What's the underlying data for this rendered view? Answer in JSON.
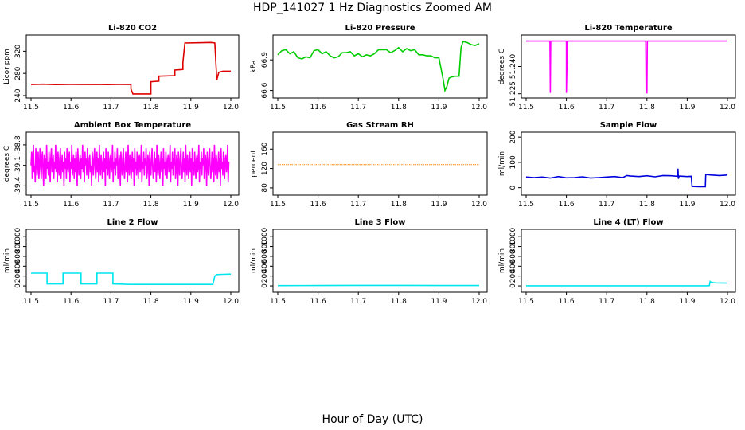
{
  "page_title": "HDP_141027  1 Hz Diagnostics Zoomed AM",
  "x_axis_label": "Hour of Day (UTC)",
  "chart_data": [
    {
      "type": "line",
      "title": "Li-820 CO2",
      "ylabel": "Licor ppm",
      "color": "#dd0000",
      "xlim": [
        11.5,
        12.0
      ],
      "ylim": [
        240,
        345
      ],
      "xticks": [
        "11.5",
        "11.6",
        "11.7",
        "11.8",
        "11.9",
        "12.0"
      ],
      "yticks": [
        "240",
        "280",
        "320"
      ],
      "yticks_values": [
        240,
        280,
        320
      ],
      "series": [
        {
          "name": "CO2",
          "x": [
            11.5,
            11.53,
            11.56,
            11.6,
            11.63,
            11.66,
            11.69,
            11.72,
            11.75,
            11.75,
            11.755,
            11.8,
            11.8,
            11.82,
            11.82,
            11.86,
            11.86,
            11.88,
            11.88,
            11.885,
            11.95,
            11.96,
            11.965,
            11.97,
            11.98,
            12.0
          ],
          "values": [
            260,
            260.5,
            259.8,
            260.2,
            260,
            260.3,
            259.9,
            260.1,
            260,
            252,
            243,
            243,
            265,
            266,
            275,
            276,
            286,
            287,
            300,
            335,
            336,
            335,
            268,
            282,
            284,
            284
          ]
        }
      ]
    },
    {
      "type": "line",
      "title": "Li-820 Pressure",
      "ylabel": "kPa",
      "color": "#00cc00",
      "xlim": [
        11.5,
        12.0
      ],
      "ylim": [
        66.55,
        67.12
      ],
      "xticks": [
        "11.5",
        "11.6",
        "11.7",
        "11.8",
        "11.9",
        "12.0"
      ],
      "yticks": [
        "66.6",
        "66.9"
      ],
      "yticks_values": [
        66.6,
        66.9
      ],
      "series": [
        {
          "name": "Pressure",
          "x": [
            11.5,
            11.51,
            11.52,
            11.53,
            11.54,
            11.55,
            11.56,
            11.57,
            11.58,
            11.59,
            11.6,
            11.61,
            11.62,
            11.63,
            11.64,
            11.65,
            11.66,
            11.67,
            11.68,
            11.69,
            11.7,
            11.71,
            11.72,
            11.73,
            11.74,
            11.75,
            11.76,
            11.77,
            11.78,
            11.79,
            11.8,
            11.81,
            11.82,
            11.83,
            11.84,
            11.85,
            11.86,
            11.87,
            11.88,
            11.89,
            11.9,
            11.91,
            11.915,
            11.92,
            11.925,
            11.93,
            11.94,
            11.95,
            11.955,
            11.96,
            11.97,
            11.98,
            11.99,
            12.0
          ],
          "values": [
            66.95,
            66.99,
            67.0,
            66.96,
            66.98,
            66.92,
            66.91,
            66.93,
            66.92,
            66.99,
            67.0,
            66.96,
            66.98,
            66.94,
            66.92,
            66.93,
            66.97,
            66.97,
            66.98,
            66.94,
            66.96,
            66.93,
            66.95,
            66.94,
            66.96,
            67.0,
            67.0,
            67.0,
            66.97,
            66.99,
            67.02,
            66.98,
            67.01,
            66.99,
            67.0,
            66.95,
            66.95,
            66.94,
            66.94,
            66.92,
            66.92,
            66.72,
            66.6,
            66.64,
            66.72,
            66.73,
            66.74,
            66.74,
            67.02,
            67.08,
            67.07,
            67.05,
            67.04,
            67.06
          ]
        }
      ]
    },
    {
      "type": "line",
      "title": "Li-820 Temperature",
      "ylabel": "degrees C",
      "color": "#ff00ff",
      "xlim": [
        11.5,
        12.0
      ],
      "ylim": [
        51.224,
        51.256
      ],
      "xticks": [
        "11.5",
        "11.6",
        "11.7",
        "11.8",
        "11.9",
        "12.0"
      ],
      "yticks": [
        "51.225",
        "51.240"
      ],
      "yticks_values": [
        51.225,
        51.24
      ],
      "series": [
        {
          "name": "Temperature",
          "x": [
            11.5,
            11.559,
            11.56,
            11.561,
            11.6,
            11.6,
            11.602,
            11.603,
            11.797,
            11.798,
            11.8,
            11.801,
            12.0
          ],
          "values": [
            51.254,
            51.254,
            51.2255,
            51.254,
            51.254,
            51.2255,
            51.246,
            51.254,
            51.254,
            51.2255,
            51.2255,
            51.254,
            51.254
          ]
        }
      ]
    },
    {
      "type": "line",
      "title": "Ambient Box Temperature",
      "ylabel": "degrees C",
      "color": "#ff00ff",
      "xlim": [
        11.5,
        12.0
      ],
      "ylim": [
        -39.5,
        -38.65
      ],
      "xticks": [
        "11.5",
        "11.6",
        "11.7",
        "11.8",
        "11.9",
        "12.0"
      ],
      "yticks": [
        "-39.4",
        "-39.1",
        "-38.8"
      ],
      "yticks_values": [
        -39.4,
        -39.1,
        -38.8
      ],
      "series": [
        {
          "name": "Ambient",
          "x_start": 11.5,
          "x_step": 0.0015,
          "values": [
            -39.1,
            -38.9,
            -39.3,
            -39.0,
            -38.8,
            -39.2,
            -39.1,
            -39.35,
            -38.85,
            -39.0,
            -39.25,
            -39.1,
            -38.9,
            -39.3,
            -39.15,
            -38.85,
            -39.05,
            -39.3,
            -39.0,
            -38.9,
            -39.2,
            -39.4,
            -38.95,
            -39.1,
            -39.0,
            -39.3,
            -38.8,
            -39.15,
            -39.05,
            -39.25,
            -38.9,
            -39.1,
            -39.35,
            -39.0,
            -38.85,
            -39.2,
            -39.1,
            -38.95,
            -39.3,
            -39.05,
            -39.15,
            -38.8,
            -39.2,
            -39.0,
            -39.35,
            -38.9,
            -39.1,
            -39.25,
            -39.0,
            -38.85,
            -39.3,
            -39.1,
            -38.95,
            -39.2,
            -39.05,
            -39.4,
            -38.9,
            -39.15,
            -39.0,
            -39.3,
            -38.85,
            -39.1,
            -39.2,
            -39.0,
            -38.9,
            -39.35,
            -39.05,
            -39.15,
            -38.8,
            -39.25,
            -39.1,
            -38.95,
            -39.3,
            -39.0,
            -39.2,
            -38.9,
            -39.1,
            -39.4,
            -38.85,
            -39.05,
            -39.25,
            -39.1,
            -38.95,
            -39.3,
            -39.0,
            -39.15,
            -38.8,
            -39.2,
            -39.05,
            -39.35,
            -38.9,
            -39.1,
            -39.0,
            -39.25,
            -38.85,
            -39.15,
            -39.3,
            -39.0,
            -38.95,
            -39.2,
            -39.1,
            -39.4,
            -38.9,
            -39.05,
            -39.25,
            -39.0,
            -38.85,
            -39.15,
            -39.3,
            -39.1,
            -38.9,
            -39.2,
            -39.0,
            -39.35,
            -38.8,
            -39.1,
            -39.25,
            -38.95,
            -39.05,
            -39.3,
            -39.1,
            -38.9,
            -39.2,
            -39.0,
            -39.4,
            -38.85,
            -39.15,
            -39.05,
            -39.25,
            -38.9,
            -39.1,
            -39.3,
            -39.0,
            -38.95,
            -39.2,
            -39.1,
            -38.8,
            -39.35,
            -39.05,
            -39.15,
            -38.9,
            -39.25,
            -39.0,
            -39.1,
            -38.85,
            -39.3,
            -39.2,
            -38.95,
            -39.05,
            -39.4,
            -38.9,
            -39.1,
            -39.25,
            -39.0,
            -38.85,
            -39.15,
            -39.3,
            -39.1,
            -38.9,
            -39.2,
            -39.0,
            -39.35,
            -38.8,
            -39.1,
            -39.25,
            -38.95,
            -39.05,
            -39.3,
            -39.1,
            -38.9,
            -39.2,
            -39.0,
            -39.4,
            -38.85,
            -39.15,
            -39.05,
            -39.25,
            -38.9,
            -39.1,
            -39.3,
            -39.0,
            -38.95,
            -39.2,
            -39.1,
            -38.8,
            -39.35,
            -39.05,
            -39.15,
            -38.9,
            -39.25,
            -39.0,
            -39.1,
            -38.85,
            -39.3,
            -39.2,
            -38.95,
            -39.05,
            -39.4,
            -38.9,
            -39.1,
            -39.25,
            -39.0,
            -38.85,
            -39.15,
            -39.3,
            -39.1,
            -38.9,
            -39.2,
            -39.0,
            -39.35,
            -38.8,
            -39.1,
            -39.25,
            -38.95,
            -39.05,
            -39.3,
            -39.1,
            -38.9,
            -39.2,
            -39.0,
            -39.4,
            -38.85,
            -39.15,
            -39.05,
            -39.25,
            -38.9,
            -39.1,
            -39.3,
            -39.0,
            -38.95,
            -39.2,
            -39.1,
            -38.8,
            -39.35,
            -39.05,
            -39.15,
            -38.9,
            -39.25,
            -39.0,
            -39.1,
            -38.85,
            -39.3,
            -39.2,
            -38.95,
            -39.05,
            -39.4,
            -38.9,
            -39.1,
            -39.25,
            -39.0,
            -38.85,
            -39.15,
            -39.3,
            -39.1,
            -38.9,
            -39.2,
            -39.0,
            -39.35,
            -38.8,
            -39.1,
            -39.25,
            -38.95,
            -39.05,
            -39.3,
            -39.1,
            -38.9,
            -39.2,
            -39.0,
            -39.4,
            -38.85,
            -39.15,
            -39.05,
            -39.25,
            -38.9,
            -39.1,
            -39.3,
            -39.0,
            -38.95,
            -39.2,
            -39.1,
            -38.8,
            -39.35,
            -39.05,
            -39.15,
            -38.9,
            -39.25,
            -39.0,
            -39.1,
            -38.85,
            -39.3,
            -39.2,
            -38.95,
            -39.05,
            -39.4,
            -38.9,
            -39.1,
            -39.25,
            -39.0,
            -38.85,
            -39.15,
            -39.3,
            -39.1,
            -38.9,
            -39.2,
            -39.0,
            -39.35,
            -38.8,
            -39.1,
            -39.25,
            -38.95,
            -39.05,
            -39.3,
            -39.1,
            -38.9,
            -39.2,
            -39.0,
            -39.4,
            -38.85,
            -39.15,
            -39.05,
            -39.25,
            -38.9,
            -39.1,
            -39.3,
            -39.0,
            -38.95,
            -39.2,
            -39.1,
            -38.8,
            -39.35,
            -39.05
          ]
        }
      ]
    },
    {
      "type": "line",
      "title": "Gas Stream RH",
      "ylabel": "percent",
      "color": "#ff8800",
      "xlim": [
        11.5,
        12.0
      ],
      "ylim": [
        70,
        190
      ],
      "xticks": [
        "11.5",
        "11.6",
        "11.7",
        "11.8",
        "11.9",
        "12.0"
      ],
      "yticks": [
        "80",
        "120",
        "160"
      ],
      "yticks_values": [
        80,
        120,
        160
      ],
      "series": [
        {
          "name": "RH",
          "x": [
            11.5,
            12.0
          ],
          "values": [
            128,
            128
          ]
        }
      ]
    },
    {
      "type": "line",
      "title": "Sample Flow",
      "ylabel": "ml/min",
      "color": "#0000dd",
      "xlim": [
        11.5,
        12.0
      ],
      "ylim": [
        -20,
        210
      ],
      "xticks": [
        "11.5",
        "11.6",
        "11.7",
        "11.8",
        "11.9",
        "12.0"
      ],
      "yticks": [
        "0",
        "100",
        "200"
      ],
      "yticks_values": [
        0,
        100,
        200
      ],
      "series": [
        {
          "name": "Sample Flow",
          "x": [
            11.5,
            11.52,
            11.54,
            11.56,
            11.58,
            11.6,
            11.62,
            11.64,
            11.66,
            11.68,
            11.7,
            11.72,
            11.74,
            11.75,
            11.76,
            11.78,
            11.8,
            11.82,
            11.84,
            11.86,
            11.876,
            11.877,
            11.878,
            11.88,
            11.9,
            11.91,
            11.912,
            11.93,
            11.945,
            11.946,
            11.96,
            11.98,
            12.0
          ],
          "values": [
            42,
            40,
            42,
            38,
            44,
            39,
            40,
            43,
            38,
            40,
            42,
            44,
            40,
            48,
            46,
            44,
            47,
            43,
            48,
            47,
            45,
            75,
            35,
            46,
            44,
            45,
            5,
            4,
            4,
            52,
            50,
            48,
            50
          ]
        }
      ]
    },
    {
      "type": "line",
      "title": "Line 2 Flow",
      "ylabel": "ml/min",
      "color": "#00e5ee",
      "xlim": [
        11.5,
        12.0
      ],
      "ylim": [
        -80,
        1100
      ],
      "xticks": [
        "11.5",
        "11.6",
        "11.7",
        "11.8",
        "11.9",
        "12.0"
      ],
      "yticks": [
        "0",
        "200",
        "400",
        "600",
        "800",
        "1000"
      ],
      "yticks_values": [
        0,
        200,
        400,
        600,
        800,
        1000
      ],
      "series": [
        {
          "name": "Line 2",
          "x": [
            11.5,
            11.54,
            11.54,
            11.58,
            11.58,
            11.625,
            11.625,
            11.665,
            11.665,
            11.705,
            11.705,
            11.75,
            11.8,
            11.9,
            11.955,
            11.96,
            11.965,
            11.98,
            12.0
          ],
          "values": [
            260,
            260,
            40,
            40,
            260,
            260,
            40,
            40,
            260,
            260,
            40,
            30,
            30,
            30,
            30,
            200,
            230,
            235,
            240
          ]
        }
      ]
    },
    {
      "type": "line",
      "title": "Line 3 Flow",
      "ylabel": "ml/min",
      "color": "#00e5ee",
      "xlim": [
        11.5,
        12.0
      ],
      "ylim": [
        -80,
        1100
      ],
      "xticks": [
        "11.5",
        "11.6",
        "11.7",
        "11.8",
        "11.9",
        "12.0"
      ],
      "yticks": [
        "0",
        "200",
        "400",
        "600",
        "800",
        "1000"
      ],
      "yticks_values": [
        0,
        200,
        400,
        600,
        800,
        1000
      ],
      "series": [
        {
          "name": "Line 3",
          "x": [
            11.5,
            11.6,
            11.7,
            11.8,
            11.9,
            12.0
          ],
          "values": [
            5,
            8,
            10,
            10,
            8,
            8
          ]
        }
      ]
    },
    {
      "type": "line",
      "title": "Line 4 (LT) Flow",
      "ylabel": "ml/min",
      "color": "#00e5ee",
      "xlim": [
        11.5,
        12.0
      ],
      "ylim": [
        -80,
        1100
      ],
      "xticks": [
        "11.5",
        "11.6",
        "11.7",
        "11.8",
        "11.9",
        "12.0"
      ],
      "yticks": [
        "0",
        "200",
        "400",
        "600",
        "800",
        "1000"
      ],
      "yticks_values": [
        0,
        200,
        400,
        600,
        800,
        1000
      ],
      "series": [
        {
          "name": "Line 4",
          "x": [
            11.5,
            11.9,
            11.95,
            11.955,
            11.957,
            11.96,
            11.97,
            12.0
          ],
          "values": [
            3,
            3,
            3,
            5,
            90,
            70,
            60,
            55
          ]
        }
      ]
    }
  ]
}
